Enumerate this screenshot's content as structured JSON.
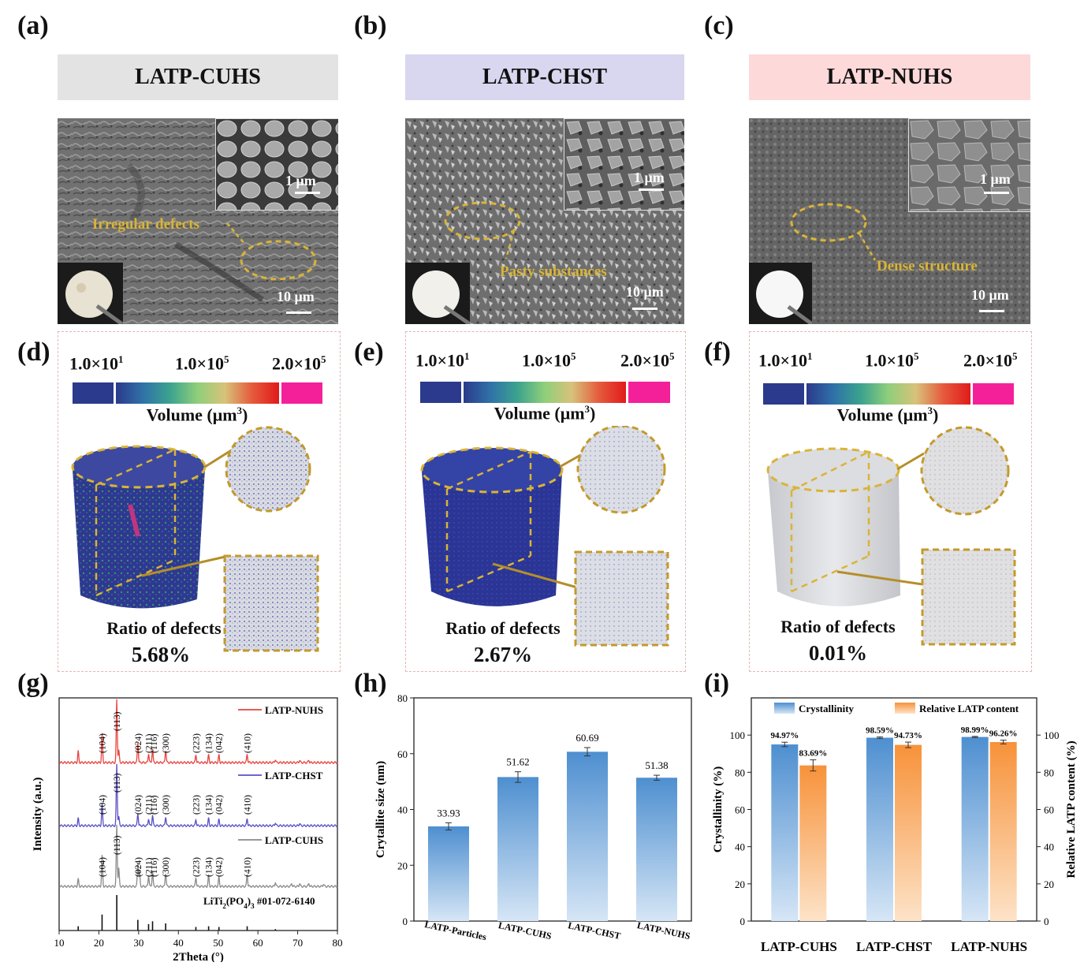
{
  "panels": {
    "a": {
      "label": "(a)",
      "header": "LATP-CUHS",
      "header_bg": "#e3e3e3",
      "annotation": "Irregular defects",
      "scale_inset": "1 μm",
      "scale_main": "10 μm"
    },
    "b": {
      "label": "(b)",
      "header": "LATP-CHST",
      "header_bg": "#d9d6ef",
      "annotation": "Pasty substances",
      "scale_inset": "1 μm",
      "scale_main": "10 μm"
    },
    "c": {
      "label": "(c)",
      "header": "LATP-NUHS",
      "header_bg": "#fdd9da",
      "annotation": "Dense structure",
      "scale_inset": "1 μm",
      "scale_main": "10 μm"
    },
    "d": {
      "label": "(d)",
      "ratio_label": "Ratio of defects",
      "ratio_value": "5.68%"
    },
    "e": {
      "label": "(e)",
      "ratio_label": "Ratio of defects",
      "ratio_value": "2.67%"
    },
    "f": {
      "label": "(f)",
      "ratio_label": "Ratio of defects",
      "ratio_value": "0.01%"
    },
    "g": {
      "label": "(g)"
    },
    "h": {
      "label": "(h)"
    },
    "i": {
      "label": "(i)"
    }
  },
  "colorbar": {
    "min_label": "1.0×10",
    "min_exp": "1",
    "mid_label": "1.0×10",
    "mid_exp": "5",
    "max_label": "2.0×10",
    "max_exp": "5",
    "volume_label": "Volume (μm",
    "volume_exp": "3",
    "volume_close": ")"
  },
  "colors": {
    "annotation_yellow": "#d9b437",
    "defect_navy": "#2c3a8a",
    "xrd_nuhs": "#e8433d",
    "xrd_chst": "#5750c4",
    "xrd_cuhs": "#8a8a8a",
    "bar_blue": "#4e8fd0",
    "bar_orange": "#f7923a"
  },
  "chart_data": [
    {
      "type": "line",
      "panel": "g",
      "xlabel": "2Theta (°)",
      "ylabel": "Intensity (a.u.)",
      "xlim": [
        10,
        80
      ],
      "xticks": [
        10,
        20,
        30,
        40,
        50,
        60,
        70,
        80
      ],
      "series": [
        {
          "name": "LATP-NUHS",
          "peaks": [
            {
              "x": 14.8,
              "h": 0.18
            },
            {
              "x": 20.8,
              "h": 0.45
            },
            {
              "x": 24.5,
              "h": 1.0
            },
            {
              "x": 25.0,
              "h": 0.2
            },
            {
              "x": 29.8,
              "h": 0.32
            },
            {
              "x": 32.5,
              "h": 0.15
            },
            {
              "x": 33.5,
              "h": 0.22
            },
            {
              "x": 36.8,
              "h": 0.2
            },
            {
              "x": 44.4,
              "h": 0.13
            },
            {
              "x": 47.6,
              "h": 0.12
            },
            {
              "x": 50.2,
              "h": 0.12
            },
            {
              "x": 57.3,
              "h": 0.14
            },
            {
              "x": 64.4,
              "h": 0.05
            },
            {
              "x": 70.5,
              "h": 0.04
            },
            {
              "x": 72.8,
              "h": 0.04
            }
          ]
        },
        {
          "name": "LATP-CHST",
          "peaks": [
            {
              "x": 14.8,
              "h": 0.12
            },
            {
              "x": 20.8,
              "h": 0.35
            },
            {
              "x": 24.5,
              "h": 1.0
            },
            {
              "x": 25.0,
              "h": 0.15
            },
            {
              "x": 29.8,
              "h": 0.2
            },
            {
              "x": 32.5,
              "h": 0.12
            },
            {
              "x": 33.5,
              "h": 0.18
            },
            {
              "x": 36.8,
              "h": 0.15
            },
            {
              "x": 44.4,
              "h": 0.1
            },
            {
              "x": 47.6,
              "h": 0.12
            },
            {
              "x": 50.2,
              "h": 0.1
            },
            {
              "x": 57.3,
              "h": 0.12
            },
            {
              "x": 64.4,
              "h": 0.05
            },
            {
              "x": 70.5,
              "h": 0.04
            }
          ]
        },
        {
          "name": "LATP-CUHS",
          "peaks": [
            {
              "x": 14.8,
              "h": 0.12
            },
            {
              "x": 20.8,
              "h": 0.5
            },
            {
              "x": 24.5,
              "h": 1.0
            },
            {
              "x": 25.0,
              "h": 0.3
            },
            {
              "x": 29.8,
              "h": 0.4
            },
            {
              "x": 30.2,
              "h": 0.25
            },
            {
              "x": 32.5,
              "h": 0.18
            },
            {
              "x": 33.5,
              "h": 0.25
            },
            {
              "x": 36.8,
              "h": 0.22
            },
            {
              "x": 44.4,
              "h": 0.15
            },
            {
              "x": 47.6,
              "h": 0.18
            },
            {
              "x": 50.2,
              "h": 0.15
            },
            {
              "x": 57.3,
              "h": 0.2
            },
            {
              "x": 64.4,
              "h": 0.07
            },
            {
              "x": 68.5,
              "h": 0.05
            },
            {
              "x": 70.5,
              "h": 0.05
            },
            {
              "x": 72.8,
              "h": 0.05
            },
            {
              "x": 76.5,
              "h": 0.04
            }
          ]
        },
        {
          "name": "LiTi2(PO4)3 #01-072-6140",
          "sticks": [
            {
              "x": 14.8,
              "h": 0.12
            },
            {
              "x": 20.8,
              "h": 0.45
            },
            {
              "x": 24.5,
              "h": 1.0
            },
            {
              "x": 29.8,
              "h": 0.3
            },
            {
              "x": 32.5,
              "h": 0.18
            },
            {
              "x": 33.5,
              "h": 0.26
            },
            {
              "x": 36.8,
              "h": 0.2
            },
            {
              "x": 44.4,
              "h": 0.1
            },
            {
              "x": 47.6,
              "h": 0.12
            },
            {
              "x": 50.2,
              "h": 0.1
            },
            {
              "x": 57.3,
              "h": 0.12
            },
            {
              "x": 64.4,
              "h": 0.04
            }
          ]
        }
      ],
      "peak_labels": [
        {
          "text": "(104)",
          "x": 20.8
        },
        {
          "text": "(113)",
          "x": 24.5
        },
        {
          "text": "(024)",
          "x": 29.8
        },
        {
          "text": "(211)",
          "x": 32.5
        },
        {
          "text": "(116)",
          "x": 33.8
        },
        {
          "text": "(300)",
          "x": 36.8
        },
        {
          "text": "(223)",
          "x": 44.4
        },
        {
          "text": "(134)",
          "x": 47.6
        },
        {
          "text": "(042)",
          "x": 50.2
        },
        {
          "text": "(410)",
          "x": 57.3
        }
      ],
      "reference_label": "LiTi",
      "reference_sub1": "2",
      "reference_mid": "(PO",
      "reference_sub2": "4",
      "reference_tail": ")",
      "reference_sub3": "3",
      "reference_code": " #01-072-6140"
    },
    {
      "type": "bar",
      "panel": "h",
      "categories": [
        "LATP-Particles",
        "LATP-CUHS",
        "LATP-CHST",
        "LATP-NUHS"
      ],
      "values": [
        33.93,
        51.62,
        60.69,
        51.38
      ],
      "value_labels": [
        "33.93",
        "51.62",
        "60.69",
        "51.38"
      ],
      "errors": [
        1.3,
        1.9,
        1.5,
        0.9
      ],
      "ylabel": "Crytallite size (nm)",
      "ylim": [
        0,
        80
      ],
      "yticks": [
        0,
        20,
        40,
        60,
        80
      ]
    },
    {
      "type": "bar",
      "panel": "i",
      "categories": [
        "LATP-CUHS",
        "LATP-CHST",
        "LATP-NUHS"
      ],
      "series": [
        {
          "name": "Crystallinity",
          "values": [
            94.97,
            98.59,
            98.99
          ],
          "labels": [
            "94.97%",
            "98.59%",
            "98.99%"
          ],
          "errors": [
            1.2,
            0.4,
            0.3
          ]
        },
        {
          "name": "Relative LATP content",
          "values": [
            83.69,
            94.73,
            96.26
          ],
          "labels": [
            "83.69%",
            "94.73%",
            "96.26%"
          ],
          "errors": [
            3.0,
            1.5,
            1.0
          ]
        }
      ],
      "ylabel_left": "Crystallinity (%)",
      "ylabel_right": "Relative LATP content (%)",
      "ylim": [
        0,
        120
      ],
      "yticks": [
        0,
        20,
        40,
        60,
        80,
        100
      ]
    }
  ]
}
